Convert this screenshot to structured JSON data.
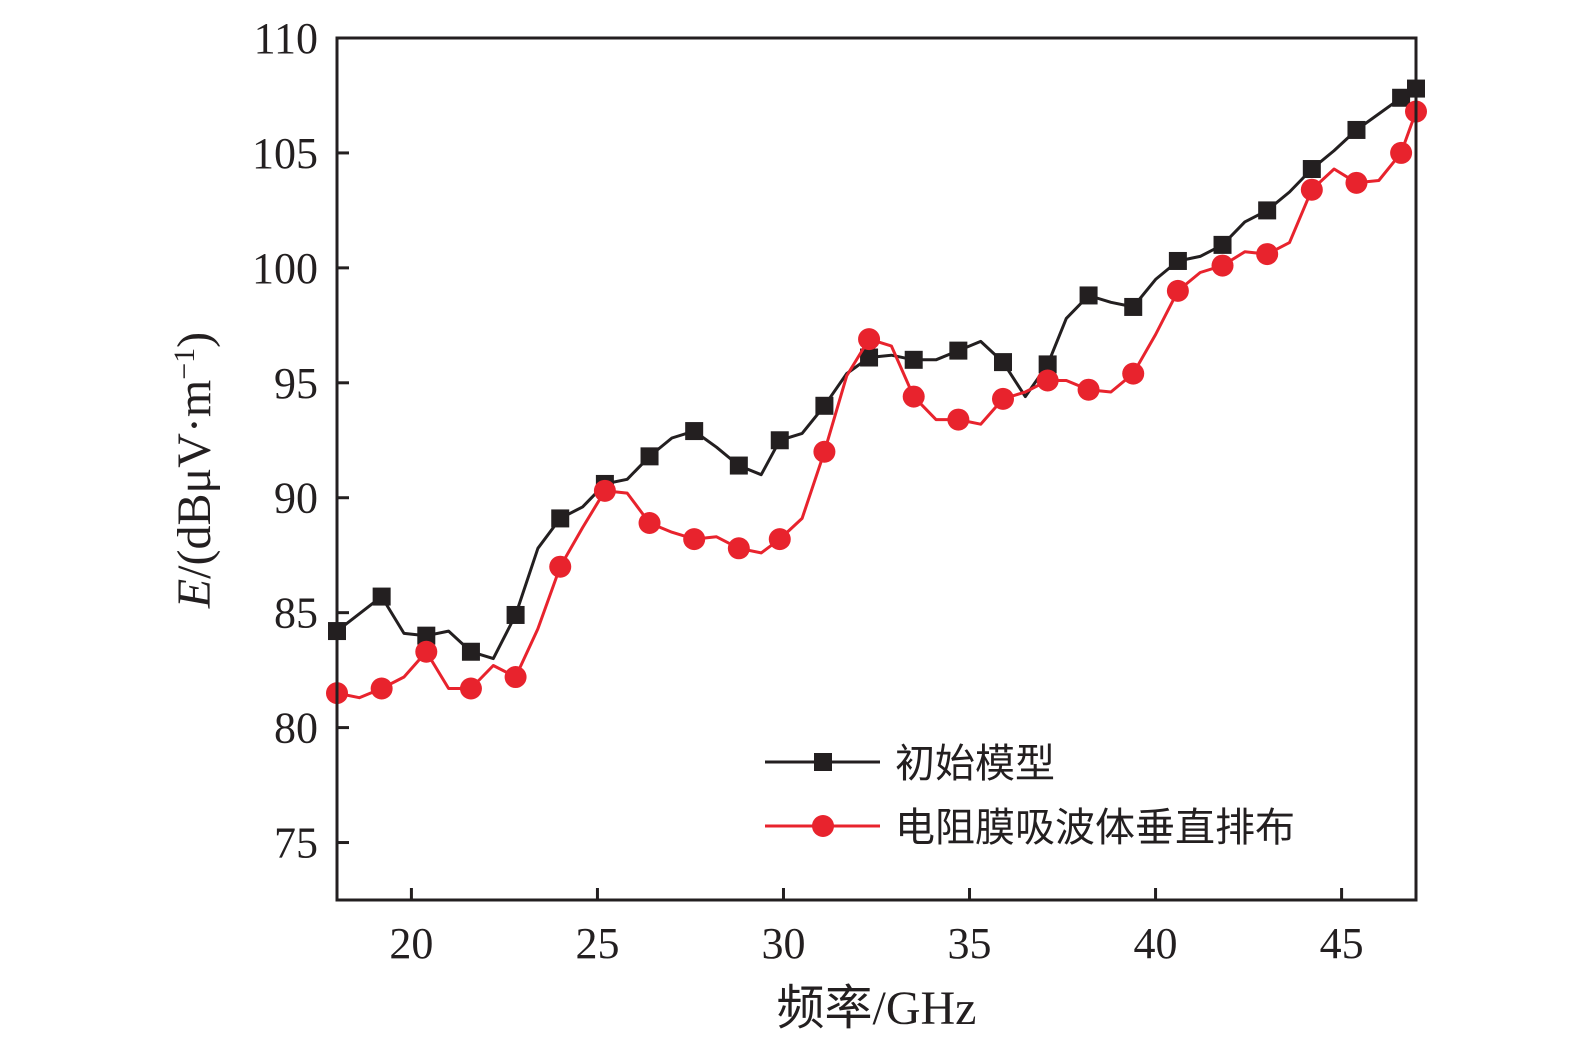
{
  "chart_data": {
    "type": "line",
    "title": "",
    "xlabel": "频率/GHz",
    "ylabel": {
      "var": "E",
      "unit_prefix": "/(dBμV·m",
      "unit_exp": "−1",
      "unit_suffix": ")"
    },
    "xlim": [
      18,
      47
    ],
    "ylim": [
      72.5,
      110
    ],
    "xticks": [
      20,
      25,
      30,
      35,
      40,
      45
    ],
    "yticks": [
      75,
      80,
      85,
      90,
      95,
      100,
      105,
      110
    ],
    "grid": false,
    "legend_position": "bottom-right",
    "series": [
      {
        "name": "初始模型",
        "color": "#231f20",
        "marker": "square",
        "line": [
          [
            18,
            84.2
          ],
          [
            19.2,
            85.7
          ],
          [
            19.8,
            84.1
          ],
          [
            20.4,
            84.0
          ],
          [
            21.0,
            84.2
          ],
          [
            21.6,
            83.3
          ],
          [
            22.2,
            83.0
          ],
          [
            22.8,
            84.9
          ],
          [
            23.4,
            87.8
          ],
          [
            24.0,
            89.1
          ],
          [
            24.6,
            89.6
          ],
          [
            25.2,
            90.6
          ],
          [
            25.8,
            90.8
          ],
          [
            26.4,
            91.8
          ],
          [
            27.0,
            92.6
          ],
          [
            27.6,
            92.9
          ],
          [
            28.2,
            92.2
          ],
          [
            28.8,
            91.4
          ],
          [
            29.4,
            91.0
          ],
          [
            29.9,
            92.5
          ],
          [
            30.5,
            92.8
          ],
          [
            31.1,
            94.0
          ],
          [
            31.7,
            95.4
          ],
          [
            32.3,
            96.1
          ],
          [
            32.9,
            96.2
          ],
          [
            33.5,
            96.0
          ],
          [
            34.1,
            96.0
          ],
          [
            34.7,
            96.4
          ],
          [
            35.3,
            96.8
          ],
          [
            35.9,
            95.9
          ],
          [
            36.5,
            94.4
          ],
          [
            37.1,
            95.8
          ],
          [
            37.6,
            97.8
          ],
          [
            38.2,
            98.8
          ],
          [
            38.8,
            98.5
          ],
          [
            39.4,
            98.3
          ],
          [
            40.0,
            99.5
          ],
          [
            40.6,
            100.3
          ],
          [
            41.2,
            100.5
          ],
          [
            41.8,
            101.0
          ],
          [
            42.4,
            102.0
          ],
          [
            43.0,
            102.5
          ],
          [
            43.6,
            103.3
          ],
          [
            44.2,
            104.3
          ],
          [
            44.8,
            105.1
          ],
          [
            45.4,
            106.0
          ],
          [
            46.0,
            106.7
          ],
          [
            46.6,
            107.4
          ],
          [
            47.0,
            107.8
          ]
        ],
        "markers_x": [
          18,
          19.2,
          20.4,
          21.6,
          22.8,
          24.0,
          25.2,
          26.4,
          27.6,
          28.8,
          29.9,
          31.1,
          32.3,
          33.5,
          34.7,
          35.9,
          37.1,
          38.2,
          39.4,
          40.6,
          41.8,
          43.0,
          44.2,
          45.4,
          46.6,
          47.0
        ]
      },
      {
        "name": "电阻膜吸波体垂直排布",
        "color": "#e8232d",
        "marker": "circle",
        "line": [
          [
            18,
            81.5
          ],
          [
            18.6,
            81.3
          ],
          [
            19.2,
            81.7
          ],
          [
            19.8,
            82.2
          ],
          [
            20.4,
            83.3
          ],
          [
            21.0,
            81.7
          ],
          [
            21.6,
            81.7
          ],
          [
            22.2,
            82.7
          ],
          [
            22.8,
            82.2
          ],
          [
            23.4,
            84.3
          ],
          [
            24.0,
            87.0
          ],
          [
            24.6,
            88.7
          ],
          [
            25.2,
            90.3
          ],
          [
            25.8,
            90.2
          ],
          [
            26.4,
            88.9
          ],
          [
            27.0,
            88.5
          ],
          [
            27.6,
            88.2
          ],
          [
            28.2,
            88.3
          ],
          [
            28.8,
            87.8
          ],
          [
            29.4,
            87.6
          ],
          [
            29.9,
            88.2
          ],
          [
            30.5,
            89.1
          ],
          [
            31.1,
            92.0
          ],
          [
            31.7,
            95.3
          ],
          [
            32.3,
            96.9
          ],
          [
            32.9,
            96.6
          ],
          [
            33.5,
            94.4
          ],
          [
            34.1,
            93.4
          ],
          [
            34.7,
            93.4
          ],
          [
            35.3,
            93.2
          ],
          [
            35.9,
            94.3
          ],
          [
            36.5,
            94.6
          ],
          [
            37.1,
            95.1
          ],
          [
            37.6,
            95.1
          ],
          [
            38.2,
            94.7
          ],
          [
            38.8,
            94.6
          ],
          [
            39.4,
            95.4
          ],
          [
            40.0,
            97.1
          ],
          [
            40.6,
            99.0
          ],
          [
            41.2,
            99.8
          ],
          [
            41.8,
            100.1
          ],
          [
            42.4,
            100.7
          ],
          [
            43.0,
            100.6
          ],
          [
            43.6,
            101.1
          ],
          [
            44.2,
            103.4
          ],
          [
            44.8,
            104.3
          ],
          [
            45.4,
            103.7
          ],
          [
            46.0,
            103.8
          ],
          [
            46.6,
            105.0
          ],
          [
            47.0,
            106.8
          ]
        ],
        "markers_x": [
          18,
          19.2,
          20.4,
          21.6,
          22.8,
          24.0,
          25.2,
          26.4,
          27.6,
          28.8,
          29.9,
          31.1,
          32.3,
          33.5,
          34.7,
          35.9,
          37.1,
          38.2,
          39.4,
          40.6,
          41.8,
          43.0,
          44.2,
          45.4,
          46.6,
          47.0
        ]
      }
    ]
  }
}
